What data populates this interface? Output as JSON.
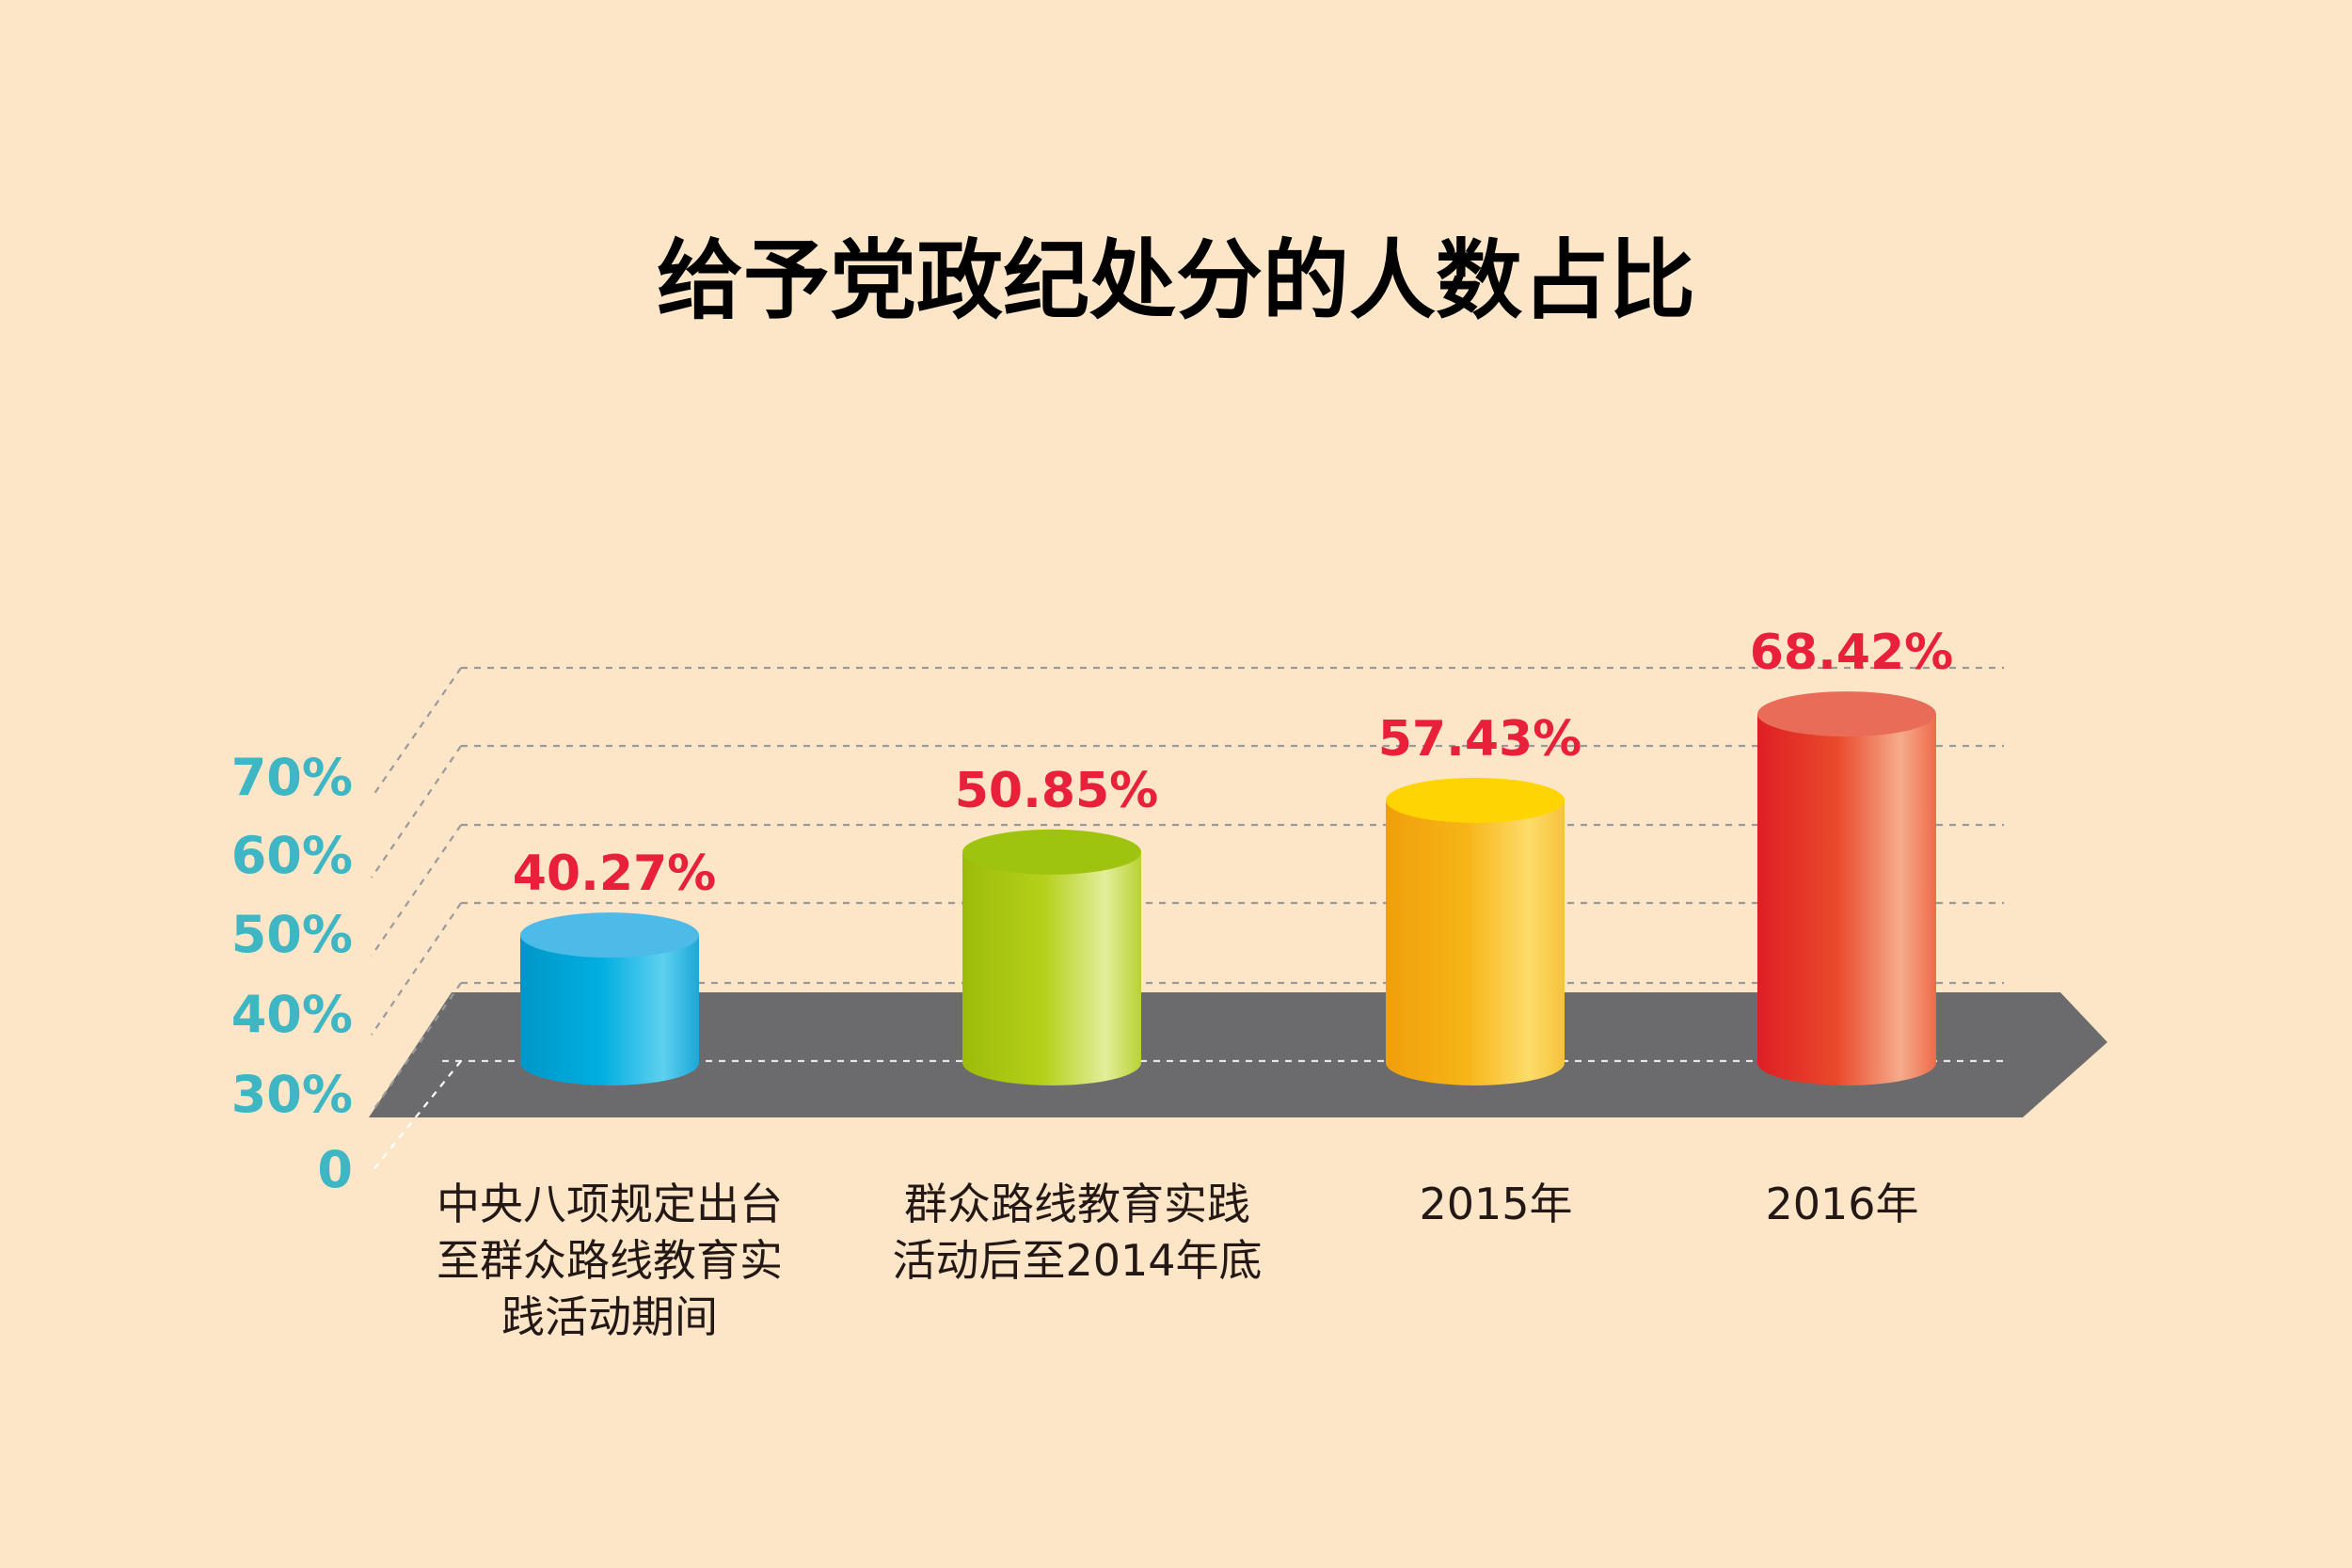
{
  "chart_data": {
    "type": "bar",
    "title": "给予党政纪处分的人数占比",
    "categories": [
      "中央八项规定出台\n至群众路线教育实\n践活动期间",
      "群众路线教育实践\n活动后至2014年底",
      "2015年",
      "2016年"
    ],
    "values": [
      40.27,
      50.85,
      57.43,
      68.42
    ],
    "value_labels": [
      "40.27%",
      "50.85%",
      "57.43%",
      "68.42%"
    ],
    "y_ticks": [
      "0",
      "30%",
      "40%",
      "50%",
      "60%",
      "70%"
    ],
    "ylabel": "",
    "xlabel": "",
    "grid": true,
    "colors": {
      "background": "#fde6c8",
      "title": "#000000",
      "tick": "#3fb6c4",
      "value_label": "#e8203a",
      "platform": "#6b6b6d",
      "gridline": "#9a9a9a",
      "bars": [
        "#00a8dc",
        "#b3cf16",
        "#f5ae12",
        "#e84524"
      ]
    }
  }
}
